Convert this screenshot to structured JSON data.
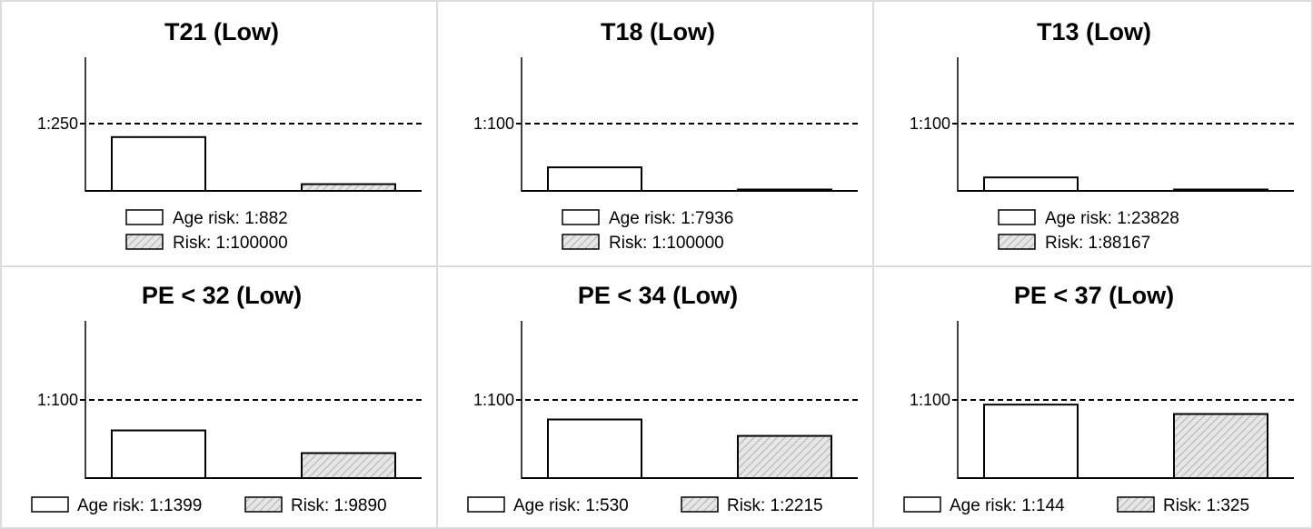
{
  "chart_data": [
    {
      "type": "bar",
      "title": "T21 (Low)",
      "threshold_label": "1:250",
      "categories": [
        "Age risk",
        "Risk"
      ],
      "series": [
        {
          "name": "Age risk: 1:882",
          "value": 0.8,
          "pattern": "none"
        },
        {
          "name": "Risk: 1:100000",
          "value": 0.1,
          "pattern": "hatch"
        }
      ],
      "ylim": [
        0,
        1.95
      ],
      "threshold_value": 1.0,
      "legend_layout": "stacked"
    },
    {
      "type": "bar",
      "title": "T18 (Low)",
      "threshold_label": "1:100",
      "categories": [
        "Age risk",
        "Risk"
      ],
      "series": [
        {
          "name": "Age risk: 1:7936",
          "value": 0.35,
          "pattern": "none"
        },
        {
          "name": "Risk: 1:100000",
          "value": 0.0,
          "pattern": "hatch"
        }
      ],
      "ylim": [
        0,
        1.95
      ],
      "threshold_value": 1.0,
      "legend_layout": "stacked"
    },
    {
      "type": "bar",
      "title": "T13 (Low)",
      "threshold_label": "1:100",
      "categories": [
        "Age risk",
        "Risk"
      ],
      "series": [
        {
          "name": "Age risk: 1:23828",
          "value": 0.2,
          "pattern": "none"
        },
        {
          "name": "Risk: 1:88167",
          "value": 0.0,
          "pattern": "hatch"
        }
      ],
      "ylim": [
        0,
        1.95
      ],
      "threshold_value": 1.0,
      "legend_layout": "stacked"
    },
    {
      "type": "bar",
      "title": "PE < 32 (Low)",
      "threshold_label": "1:100",
      "categories": [
        "Age risk",
        "Risk"
      ],
      "series": [
        {
          "name": "Age risk: 1:1399",
          "value": 0.61,
          "pattern": "none"
        },
        {
          "name": "Risk: 1:9890",
          "value": 0.32,
          "pattern": "hatch"
        }
      ],
      "ylim": [
        0,
        1.99
      ],
      "threshold_value": 1.0,
      "legend_layout": "inline"
    },
    {
      "type": "bar",
      "title": "PE < 34 (Low)",
      "threshold_label": "1:100",
      "categories": [
        "Age risk",
        "Risk"
      ],
      "series": [
        {
          "name": "Age risk: 1:530",
          "value": 0.75,
          "pattern": "none"
        },
        {
          "name": "Risk: 1:2215",
          "value": 0.54,
          "pattern": "hatch"
        }
      ],
      "ylim": [
        0,
        1.99
      ],
      "threshold_value": 1.0,
      "legend_layout": "inline"
    },
    {
      "type": "bar",
      "title": "PE < 37 (Low)",
      "threshold_label": "1:100",
      "categories": [
        "Age risk",
        "Risk"
      ],
      "series": [
        {
          "name": "Age risk: 1:144",
          "value": 0.94,
          "pattern": "none"
        },
        {
          "name": "Risk: 1:325",
          "value": 0.82,
          "pattern": "hatch"
        }
      ],
      "ylim": [
        0,
        1.99
      ],
      "threshold_value": 1.0,
      "legend_layout": "inline"
    }
  ],
  "colors": {
    "bar_stroke": "#000000",
    "hatch_fill": "#e6e6e6",
    "hatch_line": "#9a9a9a",
    "panel_border": "#dcdcdc"
  }
}
